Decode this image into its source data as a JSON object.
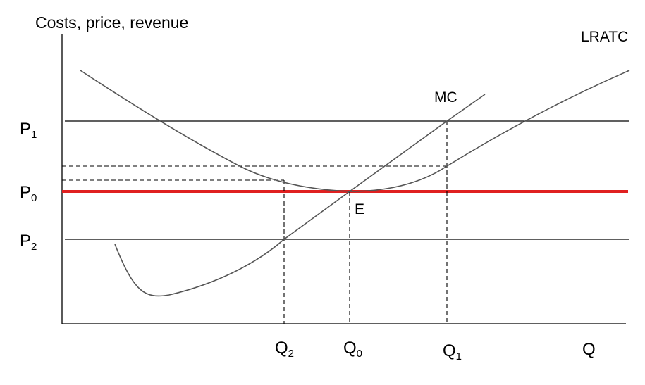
{
  "axes": {
    "y_label": "Costs, price, revenue",
    "x_label": "Q"
  },
  "curves": {
    "lratc_label": "LRATC",
    "mc_label": "MC"
  },
  "points": {
    "equilibrium_label": "E"
  },
  "price_levels": [
    {
      "base": "P",
      "subscript": "1"
    },
    {
      "base": "P",
      "subscript": "0"
    },
    {
      "base": "P",
      "subscript": "2"
    }
  ],
  "quantities": [
    {
      "base": "Q",
      "subscript": "2"
    },
    {
      "base": "Q",
      "subscript": "0"
    },
    {
      "base": "Q",
      "subscript": "1"
    }
  ],
  "colors": {
    "price_line_p0": "#e02020",
    "curves": "#555555",
    "axes": "#000000"
  }
}
